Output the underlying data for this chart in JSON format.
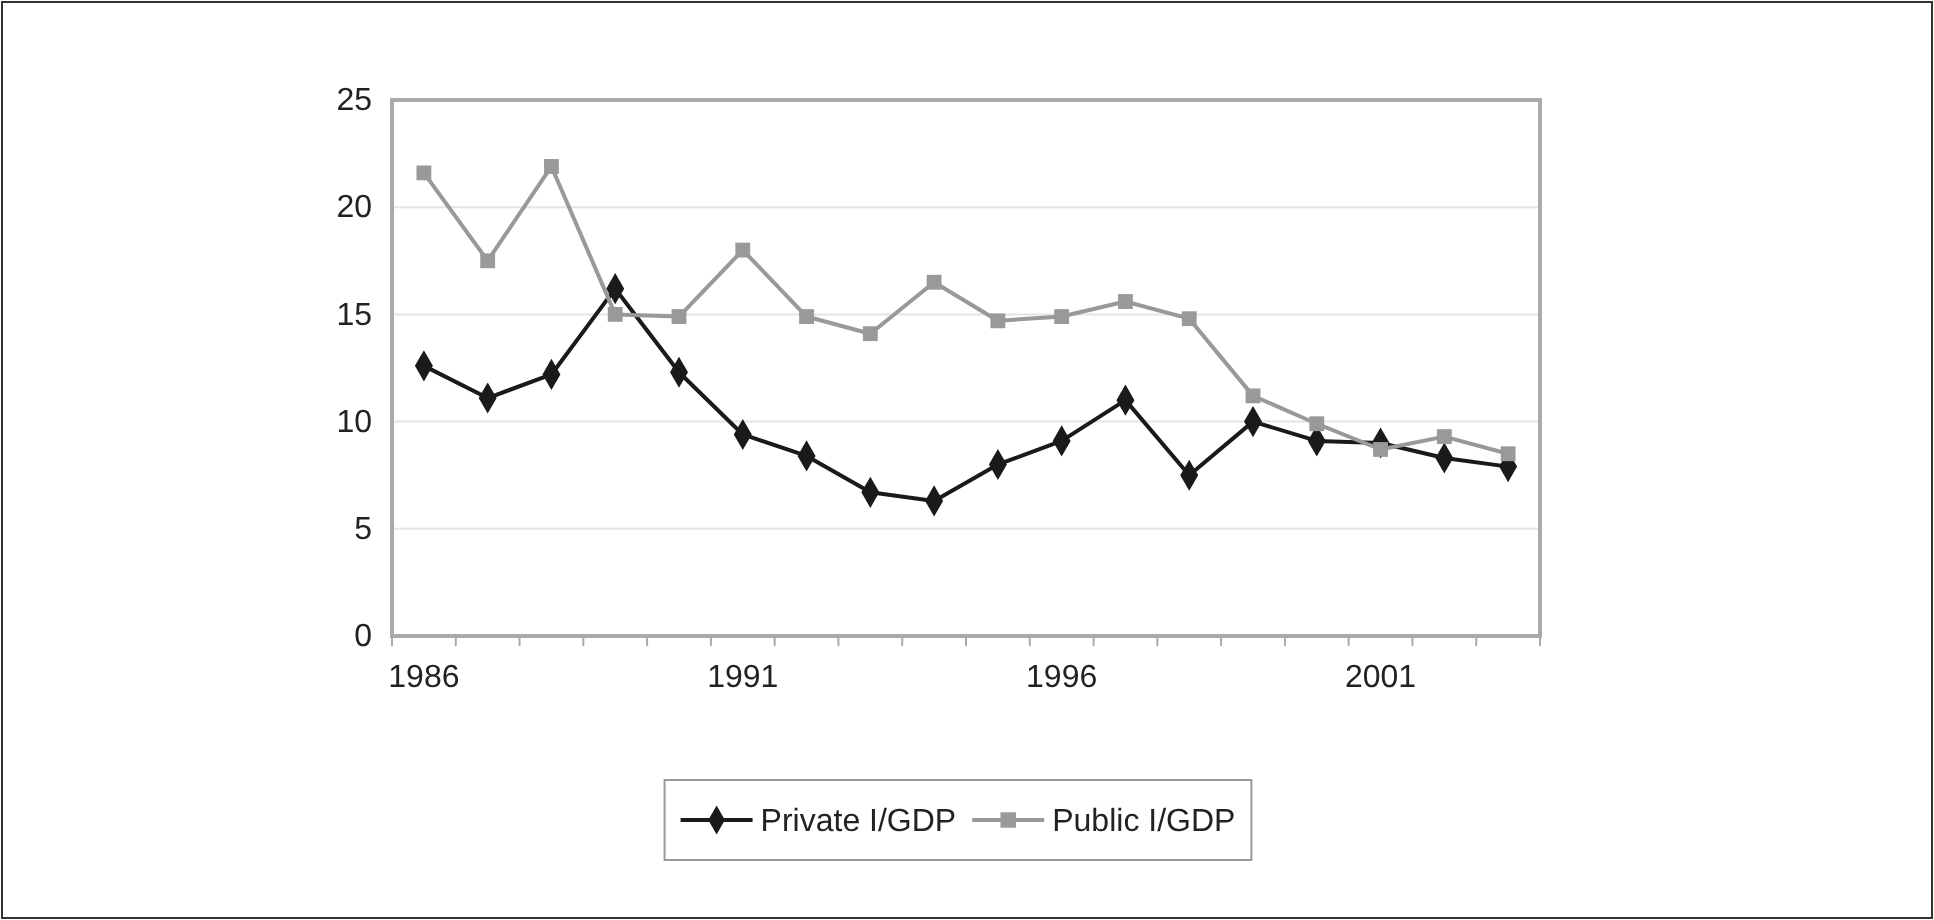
{
  "chart_data": {
    "type": "line",
    "categories": [
      "1986",
      null,
      null,
      null,
      null,
      "1991",
      null,
      null,
      null,
      null,
      "1996",
      null,
      null,
      null,
      null,
      "2001",
      null,
      null
    ],
    "series": [
      {
        "name": "Private I/GDP",
        "color": "#1a1a1a",
        "marker": "diamond",
        "values": [
          12.6,
          11.1,
          12.2,
          16.2,
          12.3,
          9.4,
          8.4,
          6.7,
          6.3,
          8.0,
          9.1,
          11.0,
          7.5,
          10.0,
          9.1,
          9.0,
          8.3,
          7.9
        ]
      },
      {
        "name": "Public I/GDP",
        "color": "#999999",
        "marker": "square",
        "values": [
          21.6,
          17.5,
          21.9,
          15.0,
          14.9,
          18.0,
          14.9,
          14.1,
          16.5,
          14.7,
          14.9,
          15.6,
          14.8,
          11.2,
          9.9,
          8.7,
          9.3,
          8.5
        ]
      }
    ],
    "ylim": [
      0,
      25
    ],
    "yticks": [
      0,
      5,
      10,
      15,
      20,
      25
    ],
    "grid": "y",
    "legend": "bottom"
  }
}
